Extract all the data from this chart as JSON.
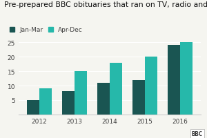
{
  "title": "Pre-prepared BBC obituaries that ran on TV, radio and online",
  "years": [
    2012,
    2013,
    2014,
    2015,
    2016
  ],
  "jan_mar": [
    5,
    8,
    11,
    12,
    24
  ],
  "apr_dec": [
    9,
    15,
    18,
    20,
    25
  ],
  "color_jan_mar": "#1a5552",
  "color_apr_dec": "#26b8aa",
  "ylim": [
    0,
    25
  ],
  "yticks": [
    0,
    5,
    10,
    15,
    20,
    25
  ],
  "background_color": "#f5f5f0",
  "title_fontsize": 7.8,
  "legend_fontsize": 6.5,
  "tick_fontsize": 6.5,
  "legend_labels": [
    "Jan-Mar",
    "Apr-Dec"
  ],
  "bbc_text": "BBC",
  "bar_width": 0.35,
  "grid_color": "#ffffff",
  "text_color": "#404040"
}
